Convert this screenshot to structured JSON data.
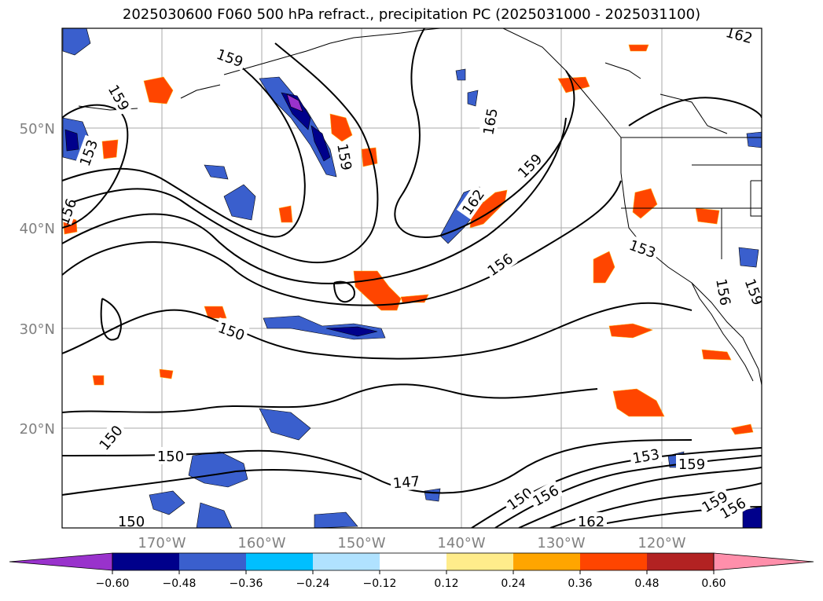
{
  "title": "2025030600 F060 500 hPa refract., precipitation PC (2025031000 - 2025031100)",
  "map": {
    "lat_labels": [
      "50°N",
      "40°N",
      "30°N",
      "20°N"
    ],
    "lon_labels": [
      "170°W",
      "160°W",
      "150°W",
      "140°W",
      "130°W",
      "120°W"
    ],
    "lon_range": [
      -180,
      -110
    ],
    "lat_range": [
      10,
      60
    ],
    "gridlines": true,
    "coastlines": true,
    "contour_labels": [
      "159",
      "159",
      "153",
      "159",
      "165",
      "159",
      "162",
      "156",
      "153",
      "156",
      "159",
      "150",
      "150",
      "150",
      "147",
      "150",
      "156",
      "153",
      "159",
      "159",
      "156",
      "162",
      "150",
      "162",
      "156"
    ]
  },
  "colorbar": {
    "ticks": [
      "−0.60",
      "−0.48",
      "−0.36",
      "−0.24",
      "−0.12",
      "0.12",
      "0.24",
      "0.36",
      "0.48",
      "0.60"
    ],
    "colors": [
      "#9932cc",
      "#00008b",
      "#3a5fcd",
      "#00bfff",
      "#b0e2ff",
      "#ffffff",
      "#ffec8b",
      "#ffa500",
      "#ff4500",
      "#b22222",
      "#ff8fab"
    ]
  }
}
